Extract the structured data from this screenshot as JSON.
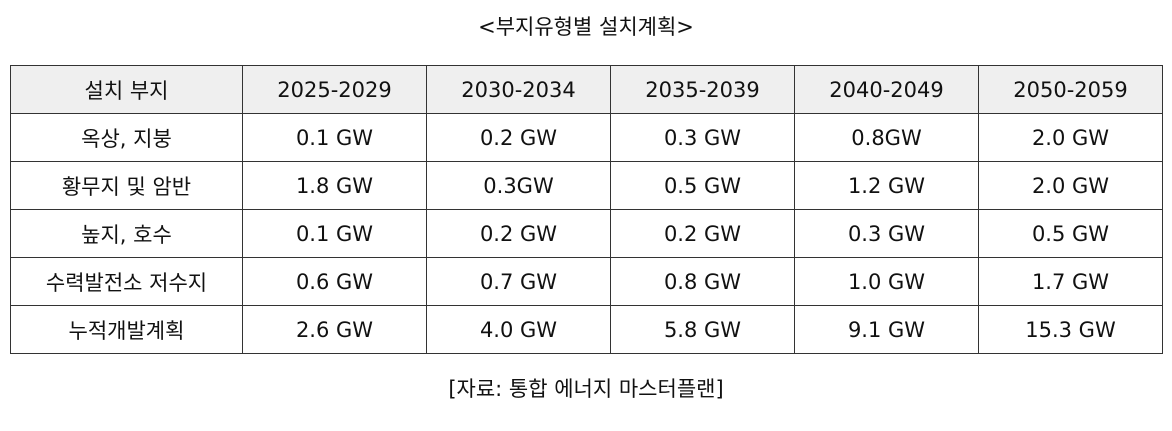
{
  "title": "<부지유형별 설치계획>",
  "table": {
    "headers": [
      "설치 부지",
      "2025-2029",
      "2030-2034",
      "2035-2039",
      "2040-2049",
      "2050-2059"
    ],
    "rows": [
      [
        "옥상, 지붕",
        "0.1 GW",
        "0.2 GW",
        "0.3 GW",
        "0.8GW",
        "2.0 GW"
      ],
      [
        "황무지 및 암반",
        "1.8 GW",
        "0.3GW",
        "0.5 GW",
        "1.2 GW",
        "2.0 GW"
      ],
      [
        "높지, 호수",
        "0.1 GW",
        "0.2 GW",
        "0.2 GW",
        "0.3 GW",
        "0.5 GW"
      ],
      [
        "수력발전소 저수지",
        "0.6 GW",
        "0.7 GW",
        "0.8 GW",
        "1.0 GW",
        "1.7 GW"
      ],
      [
        "누적개발계획",
        "2.6 GW",
        "4.0 GW",
        "5.8 GW",
        "9.1 GW",
        "15.3 GW"
      ]
    ]
  },
  "source": "[자료: 통합 에너지 마스터플랜]"
}
